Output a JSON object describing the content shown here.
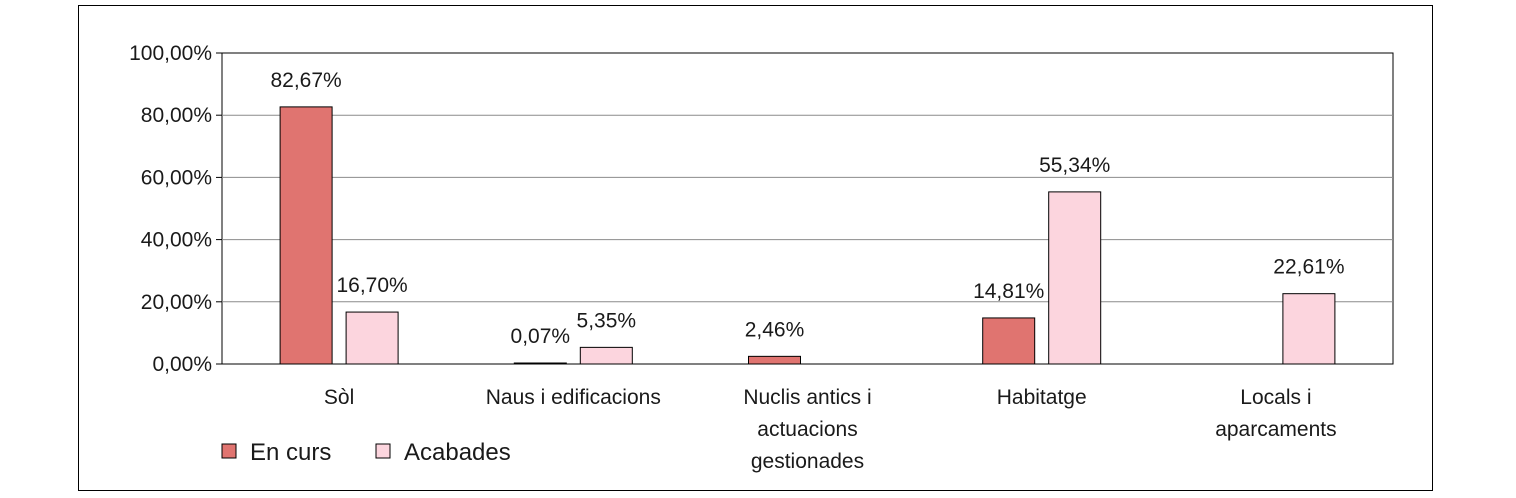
{
  "chart_data": {
    "type": "bar",
    "categories": [
      "Sòl",
      "Naus i edificacions",
      "Nuclis antics i actuacions gestionades",
      "Habitatge",
      "Locals i aparcaments"
    ],
    "category_lines": [
      [
        "Sòl"
      ],
      [
        "Naus i edificacions"
      ],
      [
        "Nuclis antics i",
        "actuacions",
        "gestionades"
      ],
      [
        "Habitatge"
      ],
      [
        "Locals i",
        "aparcaments"
      ]
    ],
    "series": [
      {
        "name": "En curs",
        "color": "#e07470",
        "values": [
          82.67,
          0.07,
          2.46,
          14.81,
          null
        ],
        "labels": [
          "82,67%",
          "0,07%",
          "2,46%",
          "14,81%",
          ""
        ]
      },
      {
        "name": "Acabades",
        "color": "#fcd5de",
        "values": [
          16.7,
          5.35,
          null,
          55.34,
          22.61
        ],
        "labels": [
          "16,70%",
          "5,35%",
          "",
          "55,34%",
          "22,61%"
        ]
      }
    ],
    "ylim": [
      0,
      100
    ],
    "yticks": [
      0,
      20,
      40,
      60,
      80,
      100
    ],
    "ytick_labels": [
      "0,00%",
      "20,00%",
      "40,00%",
      "60,00%",
      "80,00%",
      "100,00%"
    ],
    "grid": true,
    "legend_position": "bottom-left",
    "title": "",
    "xlabel": "",
    "ylabel": ""
  }
}
